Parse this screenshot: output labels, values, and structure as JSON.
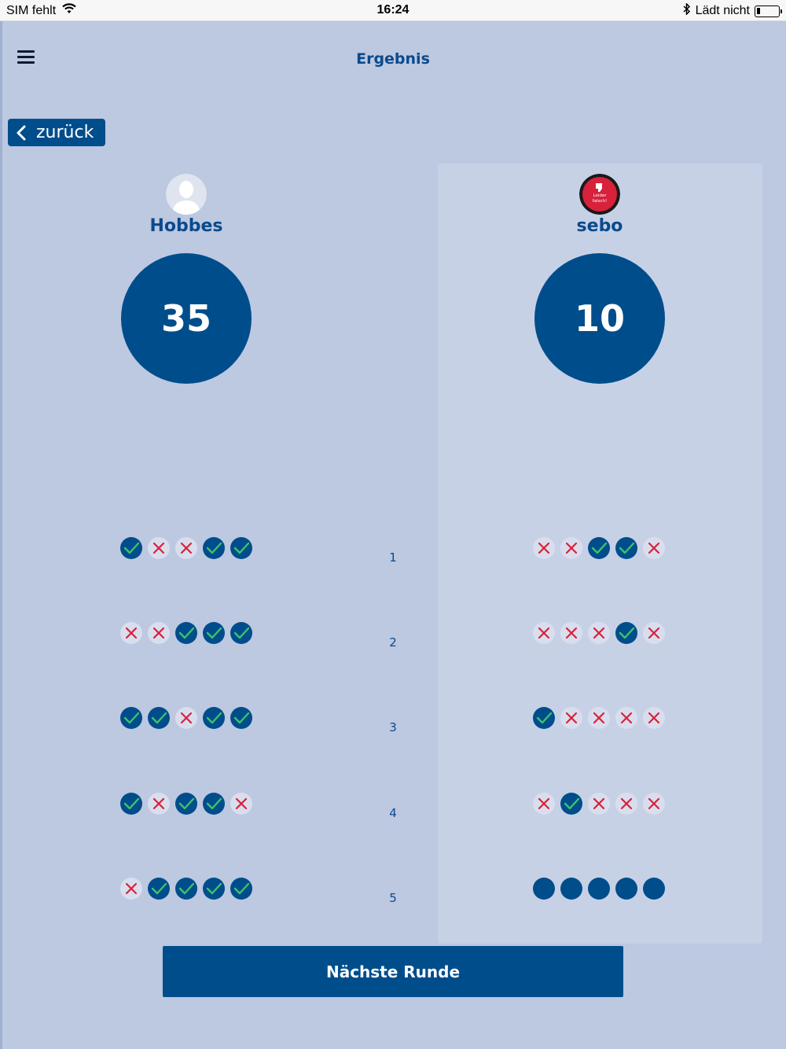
{
  "status_bar": {
    "carrier": "SIM fehlt",
    "time": "16:24",
    "charging": "Lädt nicht"
  },
  "header": {
    "title": "Ergebnis",
    "menu_icon": "hamburger-menu-icon"
  },
  "back_button": {
    "label": "zurück"
  },
  "players": [
    {
      "name": "Hobbes",
      "score": "35",
      "avatar": "default-user-icon",
      "rounds": [
        [
          "ok",
          "no",
          "no",
          "ok",
          "ok"
        ],
        [
          "no",
          "no",
          "ok",
          "ok",
          "ok"
        ],
        [
          "ok",
          "ok",
          "no",
          "ok",
          "ok"
        ],
        [
          "ok",
          "no",
          "ok",
          "ok",
          "no"
        ],
        [
          "no",
          "ok",
          "ok",
          "ok",
          "ok"
        ]
      ]
    },
    {
      "name": "sebo",
      "score": "10",
      "avatar": "thumbs-down-badge-icon",
      "avatar_text": "Leider falsch!",
      "rounds": [
        [
          "no",
          "no",
          "ok",
          "ok",
          "no"
        ],
        [
          "no",
          "no",
          "no",
          "ok",
          "no"
        ],
        [
          "ok",
          "no",
          "no",
          "no",
          "no"
        ],
        [
          "no",
          "ok",
          "no",
          "no",
          "no"
        ],
        [
          "open",
          "open",
          "open",
          "open",
          "open"
        ]
      ]
    }
  ],
  "round_numbers": [
    "1",
    "2",
    "3",
    "4",
    "5"
  ],
  "next_button": {
    "label": "Nächste Runde"
  },
  "colors": {
    "background": "#bdc8e1",
    "primary": "#004d8c",
    "correct": "#3cc36b",
    "wrong": "#d8213a"
  }
}
